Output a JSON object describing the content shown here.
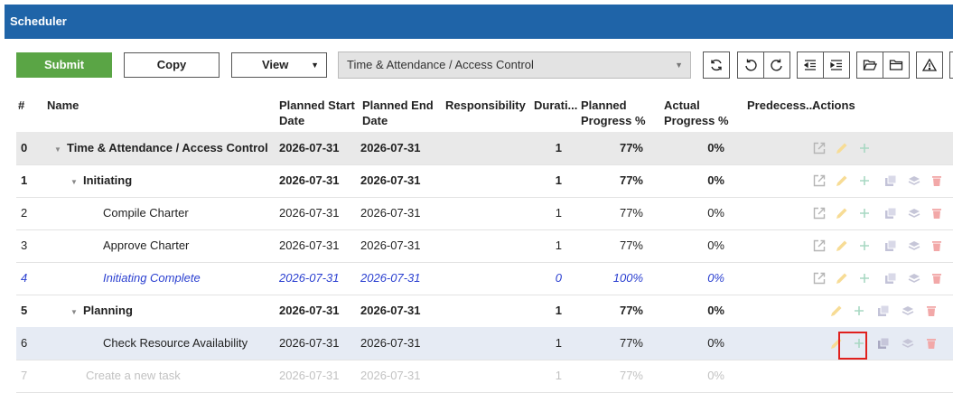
{
  "window": {
    "title": "Scheduler"
  },
  "toolbar": {
    "submit_label": "Submit",
    "copy_label": "Copy",
    "view_label": "View",
    "project_select_value": "Time & Attendance / Access Control",
    "icon_buttons": [
      "refresh-icon",
      "undo-icon",
      "redo-icon",
      "outdent-icon",
      "indent-icon",
      "folder-open-icon",
      "folder-icon",
      "warning-icon"
    ]
  },
  "table": {
    "headers": {
      "num": "#",
      "name": "Name",
      "start_1": "Planned Start",
      "start_2": "Date",
      "end_1": "Planned End",
      "end_2": "Date",
      "responsibility": "Responsibility",
      "duration": "Durati...",
      "planned_1": "Planned",
      "planned_2": "Progress %",
      "actual_1": "Actual",
      "actual_2": "Progress %",
      "predecessors": "Predecess...",
      "actions": "Actions"
    },
    "rows": [
      {
        "num": "0",
        "name": "Time & Attendance / Access Control",
        "start": "2026-07-31",
        "end": "2026-07-31",
        "duration": "1",
        "planned": "77%",
        "actual": "0%"
      },
      {
        "num": "1",
        "name": "Initiating",
        "start": "2026-07-31",
        "end": "2026-07-31",
        "duration": "1",
        "planned": "77%",
        "actual": "0%"
      },
      {
        "num": "2",
        "name": "Compile Charter",
        "start": "2026-07-31",
        "end": "2026-07-31",
        "duration": "1",
        "planned": "77%",
        "actual": "0%"
      },
      {
        "num": "3",
        "name": "Approve Charter",
        "start": "2026-07-31",
        "end": "2026-07-31",
        "duration": "1",
        "planned": "77%",
        "actual": "0%"
      },
      {
        "num": "4",
        "name": "Initiating Complete",
        "start": "2026-07-31",
        "end": "2026-07-31",
        "duration": "0",
        "planned": "100%",
        "actual": "0%"
      },
      {
        "num": "5",
        "name": "Planning",
        "start": "2026-07-31",
        "end": "2026-07-31",
        "duration": "1",
        "planned": "77%",
        "actual": "0%"
      },
      {
        "num": "6",
        "name": "Check Resource Availability",
        "start": "2026-07-31",
        "end": "2026-07-31",
        "duration": "1",
        "planned": "77%",
        "actual": "0%"
      },
      {
        "num": "7",
        "name": "Create a new task",
        "start": "2026-07-31",
        "end": "2026-07-31",
        "duration": "1",
        "planned": "77%",
        "actual": "0%"
      }
    ]
  },
  "colors": {
    "titlebar": "#1f64a8",
    "submit": "#5aa545",
    "milestone_text": "#2a3fd0",
    "highlight": "#e0201e"
  }
}
